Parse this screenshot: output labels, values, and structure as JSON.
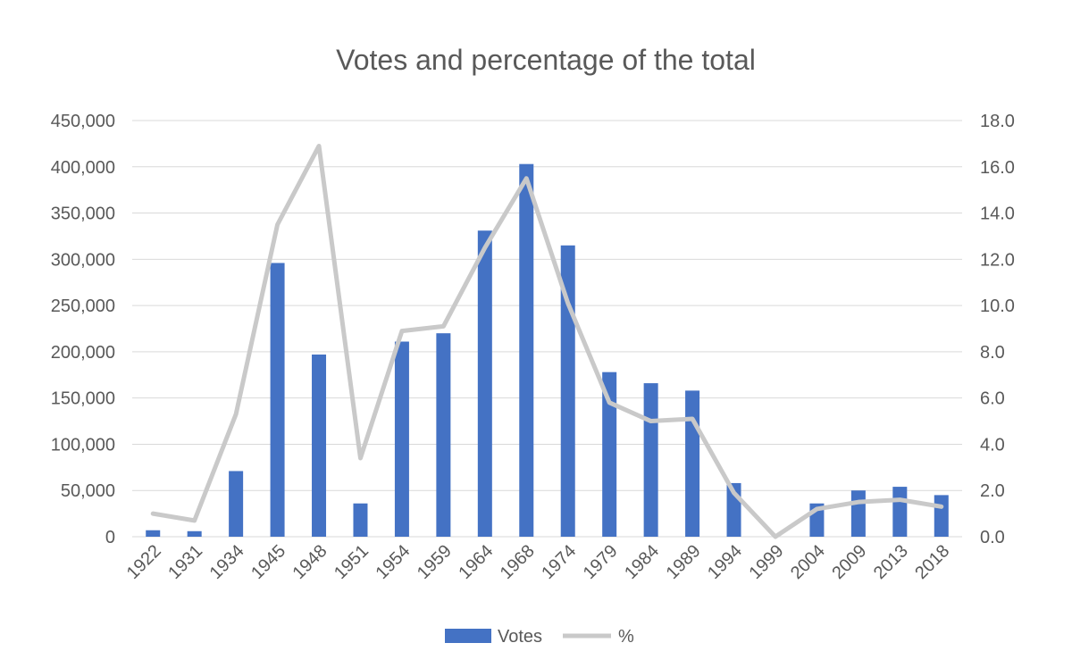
{
  "chart_data": {
    "type": "bar",
    "title": "Votes and percentage of the total",
    "categories": [
      "1922",
      "1931",
      "1934",
      "1945",
      "1948",
      "1951",
      "1954",
      "1959",
      "1964",
      "1968",
      "1974",
      "1979",
      "1984",
      "1989",
      "1994",
      "1999",
      "2004",
      "2009",
      "2013",
      "2018"
    ],
    "series": [
      {
        "name": "Votes",
        "type": "bar",
        "axis": "left",
        "color": "#4472C4",
        "values": [
          7000,
          6000,
          71000,
          296000,
          197000,
          36000,
          211000,
          220000,
          331000,
          403000,
          315000,
          178000,
          166000,
          158000,
          58000,
          0,
          36000,
          50000,
          54000,
          45000
        ]
      },
      {
        "name": "%",
        "type": "line",
        "axis": "right",
        "color": "#C9C9C9",
        "values": [
          1.0,
          0.7,
          5.3,
          13.5,
          16.9,
          3.4,
          8.9,
          9.1,
          12.5,
          15.5,
          10.1,
          5.8,
          5.0,
          5.1,
          1.9,
          0.0,
          1.2,
          1.5,
          1.6,
          1.3
        ]
      }
    ],
    "y_left": {
      "ylim": [
        0,
        450000
      ],
      "ticks": [
        "0",
        "50,000",
        "100,000",
        "150,000",
        "200,000",
        "250,000",
        "300,000",
        "350,000",
        "400,000",
        "450,000"
      ]
    },
    "y_right": {
      "ylim": [
        0,
        18
      ],
      "ticks": [
        "0.0",
        "2.0",
        "4.0",
        "6.0",
        "8.0",
        "10.0",
        "12.0",
        "14.0",
        "16.0",
        "18.0"
      ]
    },
    "grid": true,
    "legend_position": "bottom"
  }
}
